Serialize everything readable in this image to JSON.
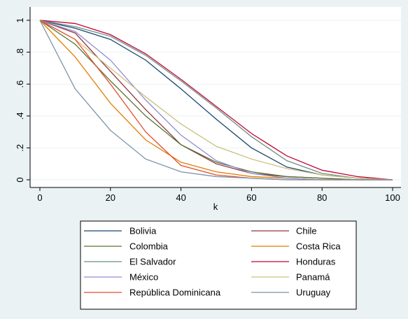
{
  "chart_data": {
    "type": "line",
    "xlabel": "k",
    "ylabel": "",
    "xlim": [
      0,
      100
    ],
    "ylim": [
      0,
      1
    ],
    "x_ticks": [
      0,
      20,
      40,
      60,
      80,
      100
    ],
    "x_tick_labels": [
      "0",
      "20",
      "40",
      "60",
      "80",
      "100"
    ],
    "y_ticks": [
      0,
      0.2,
      0.4,
      0.6,
      0.8,
      1
    ],
    "y_tick_labels": [
      "0",
      ".2",
      ".4",
      ".6",
      ".8",
      "1"
    ],
    "grid": true,
    "legend_placement": "bottom",
    "x": [
      0,
      10,
      20,
      30,
      40,
      50,
      60,
      70,
      80,
      90,
      100
    ],
    "series": [
      {
        "name": "Bolivia",
        "color": "#1a476f",
        "values": [
          1,
          0.95,
          0.88,
          0.75,
          0.57,
          0.38,
          0.2,
          0.08,
          0.03,
          0.01,
          0
        ]
      },
      {
        "name": "Chile",
        "color": "#90353b",
        "values": [
          1,
          0.92,
          0.68,
          0.44,
          0.22,
          0.1,
          0.04,
          0.02,
          0.01,
          0,
          0
        ]
      },
      {
        "name": "Colombia",
        "color": "#55752f",
        "values": [
          1,
          0.85,
          0.62,
          0.4,
          0.22,
          0.11,
          0.05,
          0.02,
          0.01,
          0,
          0
        ]
      },
      {
        "name": "Costa Rica",
        "color": "#e37e00",
        "values": [
          1,
          0.77,
          0.48,
          0.25,
          0.11,
          0.05,
          0.02,
          0.01,
          0,
          0,
          0
        ]
      },
      {
        "name": "El Salvador",
        "color": "#6e8e84",
        "values": [
          1,
          0.96,
          0.9,
          0.78,
          0.62,
          0.45,
          0.27,
          0.12,
          0.04,
          0.01,
          0
        ]
      },
      {
        "name": "Honduras",
        "color": "#c10534",
        "values": [
          1,
          0.98,
          0.91,
          0.79,
          0.63,
          0.46,
          0.29,
          0.15,
          0.06,
          0.02,
          0
        ]
      },
      {
        "name": "México",
        "color": "#938dd2",
        "values": [
          1,
          0.93,
          0.75,
          0.5,
          0.28,
          0.12,
          0.04,
          0.01,
          0,
          0,
          0
        ]
      },
      {
        "name": "Panamá",
        "color": "#cac27e",
        "values": [
          1,
          0.88,
          0.7,
          0.52,
          0.35,
          0.21,
          0.13,
          0.07,
          0.03,
          0.01,
          0
        ]
      },
      {
        "name": "República Dominicana",
        "color": "#e04e2f",
        "values": [
          1,
          0.88,
          0.6,
          0.3,
          0.09,
          0.03,
          0.01,
          0,
          0,
          0,
          0
        ]
      },
      {
        "name": "Uruguay",
        "color": "#7b92a8",
        "values": [
          1,
          0.57,
          0.31,
          0.13,
          0.05,
          0.02,
          0.01,
          0,
          0,
          0,
          0
        ]
      }
    ]
  }
}
